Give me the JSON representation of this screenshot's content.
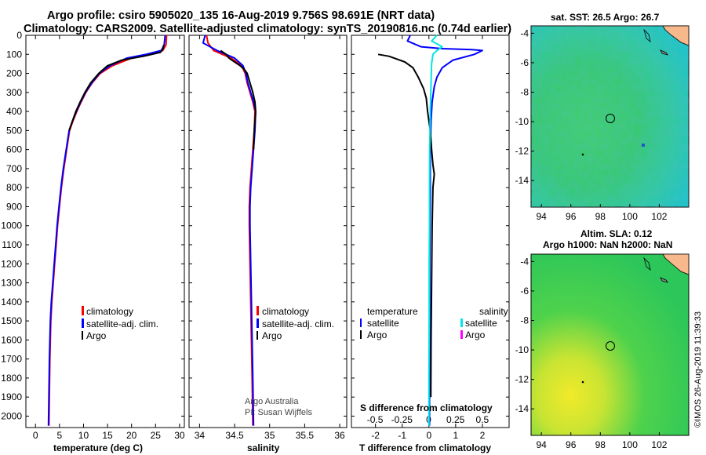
{
  "header": {
    "line1": "Argo profile: csiro 5905020_135 16-Aug-2019 9.756S 98.691E (NRT data)",
    "line2": "Climatology: CARS2009. Satellite-adjusted climatology: synTS_20190816.nc (0.74d earlier)"
  },
  "depth_ticks": [
    "0",
    "100",
    "200",
    "300",
    "400",
    "500",
    "600",
    "700",
    "800",
    "900",
    "1000",
    "1100",
    "1200",
    "1300",
    "1400",
    "1500",
    "1600",
    "1700",
    "1800",
    "1900",
    "2000"
  ],
  "legends": {
    "climatology": "climatology",
    "satellite_adj": "satellite-adj. clim.",
    "argo": "Argo",
    "temperature": "temperature",
    "salinity": "salinity",
    "satellite": "satellite"
  },
  "credits": {
    "line1": "Argo Australia",
    "line2": "PI: Susan Wijffels",
    "imos": "©IMOS 26-Aug-2019 11:39:33"
  },
  "maps": {
    "sst_title": "sat. SST: 26.5 Argo: 26.7",
    "sla_title1": "Altim. SLA: 0.12",
    "sla_title2": "Argo h1000: NaN h2000: NaN",
    "lon_ticks": [
      "94",
      "96",
      "98",
      "100",
      "102"
    ],
    "lat_ticks": [
      "-4",
      "-6",
      "-8",
      "-10",
      "-12",
      "-14"
    ],
    "float_lon": 98.691,
    "float_lat": -9.756
  },
  "colors": {
    "climatology": "#ff0000",
    "satellite": "#0000ff",
    "argo": "#000000",
    "salinity_sat": "#00e5e5",
    "salinity_argo": "#ff00ff"
  },
  "chart_data": [
    {
      "type": "line",
      "title": "",
      "xlabel": "temperature (deg C)",
      "ylabel": "",
      "xlim": [
        -2,
        31
      ],
      "ylim": [
        2060,
        0
      ],
      "xticks": [
        "0",
        "5",
        "10",
        "15",
        "20",
        "25",
        "30"
      ],
      "series": [
        {
          "name": "climatology",
          "color": "#ff0000",
          "x": [
            27.3,
            27.2,
            26.5,
            24,
            20,
            16,
            13.5,
            11.8,
            10.5,
            9.5,
            8.6,
            7.8,
            7.1,
            6.5,
            5.9,
            5.4,
            5.0,
            4.6,
            4.3,
            4.0,
            3.7,
            3.4,
            3.2,
            3.0,
            2.8
          ],
          "y": [
            0,
            50,
            80,
            100,
            120,
            160,
            200,
            250,
            300,
            350,
            400,
            450,
            500,
            600,
            700,
            800,
            900,
            1000,
            1100,
            1200,
            1300,
            1400,
            1500,
            1700,
            2050
          ]
        },
        {
          "name": "satellite-adj. clim.",
          "color": "#0000ff",
          "x": [
            27,
            26.8,
            26.2,
            23,
            19,
            15.5,
            13.3,
            11.7,
            10.4,
            9.4,
            8.5,
            7.7,
            7.0,
            6.4,
            5.8,
            5.3,
            4.9,
            4.5,
            4.2,
            3.9,
            3.6,
            3.3,
            3.1,
            2.9,
            2.7
          ],
          "y": [
            0,
            50,
            80,
            100,
            120,
            160,
            200,
            250,
            300,
            350,
            400,
            450,
            500,
            600,
            700,
            800,
            900,
            1000,
            1100,
            1200,
            1300,
            1400,
            1500,
            1700,
            2050
          ]
        },
        {
          "name": "Argo",
          "color": "#000000",
          "x": [
            26.7,
            26.6,
            26,
            22.5,
            18,
            15,
            13.2,
            11.5,
            10.3,
            9.3,
            8.4,
            7.7,
            7.0
          ],
          "y": [
            50,
            70,
            90,
            110,
            130,
            160,
            200,
            250,
            300,
            350,
            400,
            450,
            500
          ]
        }
      ]
    },
    {
      "type": "line",
      "title": "",
      "xlabel": "salinity",
      "ylabel": "",
      "xlim": [
        33.85,
        36.1
      ],
      "ylim": [
        2060,
        0
      ],
      "xticks": [
        "34",
        "34.5",
        "35",
        "35.5",
        "36"
      ],
      "series": [
        {
          "name": "climatology",
          "color": "#ff0000",
          "x": [
            34.1,
            34.12,
            34.2,
            34.45,
            34.6,
            34.65,
            34.68,
            34.72,
            34.76,
            34.79,
            34.78,
            34.76,
            34.74,
            34.72,
            34.71,
            34.71,
            34.72,
            34.73,
            34.74,
            34.75,
            34.76
          ],
          "y": [
            0,
            40,
            80,
            120,
            160,
            200,
            250,
            300,
            350,
            400,
            500,
            600,
            700,
            800,
            900,
            1000,
            1200,
            1400,
            1600,
            1800,
            2050
          ]
        },
        {
          "name": "satellite-adj. clim.",
          "color": "#0000ff",
          "x": [
            34.08,
            34.05,
            34.25,
            34.5,
            34.62,
            34.66,
            34.69,
            34.73,
            34.77,
            34.8,
            34.79,
            34.77,
            34.75,
            34.73,
            34.72,
            34.72,
            34.73,
            34.74,
            34.75,
            34.76,
            34.77
          ],
          "y": [
            0,
            40,
            80,
            120,
            160,
            200,
            250,
            300,
            350,
            400,
            500,
            600,
            700,
            800,
            900,
            1000,
            1200,
            1400,
            1600,
            1800,
            2050
          ]
        },
        {
          "name": "Argo",
          "color": "#000000",
          "x": [
            34.3,
            34.38,
            34.42,
            34.5,
            34.58,
            34.64,
            34.68,
            34.72,
            34.76,
            34.79,
            34.8,
            34.78,
            34.77
          ],
          "y": [
            80,
            100,
            120,
            140,
            160,
            180,
            200,
            250,
            300,
            350,
            400,
            500,
            600
          ]
        }
      ]
    },
    {
      "type": "line",
      "title": "",
      "xlabel": "T difference from climatology",
      "ylabel": "",
      "xlim": [
        -2.9,
        3.0
      ],
      "ylim": [
        2060,
        0
      ],
      "xticks": [
        "-2",
        "-1",
        "0",
        "1",
        "2"
      ],
      "s_label": "S difference from climatology",
      "s_ticks": [
        "-0.5",
        "-0.25",
        "0",
        "0.25",
        "0.5"
      ],
      "series": [
        {
          "name": "T satellite",
          "color": "#0000ff",
          "x": [
            -0.7,
            -0.8,
            -0.3,
            0.5,
            1.6,
            2.0,
            1.7,
            0.9,
            0.5,
            0.3,
            0.2,
            0.12,
            0.08,
            0.05,
            0.05,
            0.04,
            0.03,
            0.03,
            0.02,
            0.02
          ],
          "y": [
            0,
            30,
            60,
            70,
            75,
            80,
            100,
            130,
            170,
            220,
            270,
            350,
            450,
            600,
            800,
            1000,
            1200,
            1500,
            1800,
            2050
          ]
        },
        {
          "name": "T Argo",
          "color": "#000000",
          "x": [
            -1.9,
            -1.5,
            -1.3,
            -0.9,
            -0.6,
            -0.4,
            -0.2,
            -0.1,
            -0.05,
            0.05,
            0.1,
            0.15,
            0.2,
            0.15,
            0.12,
            0.1,
            0.08,
            0.07
          ],
          "y": [
            100,
            110,
            120,
            140,
            170,
            220,
            280,
            330,
            400,
            500,
            600,
            680,
            730,
            800,
            1000,
            1300,
            1600,
            1900
          ]
        },
        {
          "name": "S satellite",
          "color": "#00e5e5",
          "x": [
            0.3,
            0.1,
            0.5,
            0.3,
            0.15,
            0.1,
            0.08,
            0.05,
            0.03,
            0.02,
            0.02,
            0.01,
            0.01,
            0.0,
            0.0
          ],
          "y": [
            0,
            30,
            60,
            80,
            100,
            150,
            250,
            400,
            600,
            800,
            1000,
            1200,
            1500,
            1800,
            2050
          ]
        }
      ]
    }
  ]
}
